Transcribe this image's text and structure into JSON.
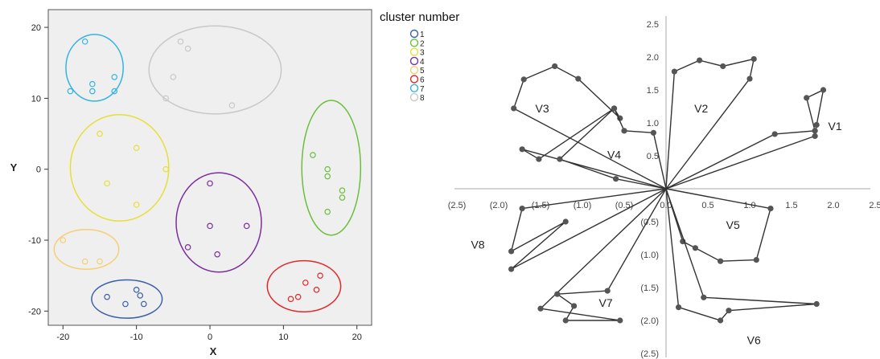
{
  "chart_data": [
    {
      "type": "scatter",
      "title": "",
      "xlabel": "X",
      "ylabel": "Y",
      "xlim": [
        -22,
        22
      ],
      "ylim": [
        -22,
        22.5
      ],
      "xticks": [
        "-20",
        "-10",
        "0",
        "10",
        "20"
      ],
      "yticks": [
        "20",
        "10",
        "0",
        "-10",
        "-20"
      ],
      "grid": false,
      "legend": {
        "title": "cluster number",
        "position": "top-right",
        "labels": [
          "1",
          "2",
          "3",
          "4",
          "5",
          "6",
          "7",
          "8"
        ]
      },
      "series": [
        {
          "name": "1",
          "color": "#3a5fa8",
          "points": [
            [
              -14,
              -18
            ],
            [
              -10,
              -17
            ],
            [
              -9.5,
              -17.8
            ],
            [
              -11.5,
              -19
            ],
            [
              -9,
              -19
            ]
          ],
          "ellipse": {
            "cx": -11.3,
            "cy": -18.3,
            "rx": 4.8,
            "ry": 2.7
          }
        },
        {
          "name": "2",
          "color": "#6abf3c",
          "points": [
            [
              14,
              2
            ],
            [
              16,
              0
            ],
            [
              16,
              -1
            ],
            [
              18,
              -3
            ],
            [
              18,
              -4
            ],
            [
              16,
              -6
            ]
          ],
          "ellipse": {
            "cx": 16.5,
            "cy": 0.2,
            "rx": 4,
            "ry": 9.5
          }
        },
        {
          "name": "3",
          "color": "#e6df3a",
          "points": [
            [
              -15,
              5
            ],
            [
              -10,
              3
            ],
            [
              -6,
              0
            ],
            [
              -14,
              -2
            ],
            [
              -10,
              -5
            ]
          ],
          "ellipse": {
            "cx": -12.3,
            "cy": 0.2,
            "rx": 6.7,
            "ry": 7.5
          }
        },
        {
          "name": "4",
          "color": "#7b2f9e",
          "points": [
            [
              0,
              -2
            ],
            [
              0,
              -8
            ],
            [
              5,
              -8
            ],
            [
              -3,
              -11
            ],
            [
              1,
              -12
            ]
          ],
          "ellipse": {
            "cx": 1.2,
            "cy": -7.5,
            "rx": 5.8,
            "ry": 7
          }
        },
        {
          "name": "5",
          "color": "#f5cf75",
          "points": [
            [
              -20,
              -10
            ],
            [
              -17,
              -13
            ],
            [
              -15,
              -13
            ]
          ],
          "ellipse": {
            "cx": -16.8,
            "cy": -11.3,
            "rx": 4.4,
            "ry": 2.8
          }
        },
        {
          "name": "6",
          "color": "#e02a2a",
          "points": [
            [
              15,
              -15
            ],
            [
              13,
              -16
            ],
            [
              14.5,
              -17
            ],
            [
              12,
              -18
            ],
            [
              11,
              -18.3
            ]
          ],
          "ellipse": {
            "cx": 12.8,
            "cy": -16.5,
            "rx": 5,
            "ry": 3.6
          }
        },
        {
          "name": "7",
          "color": "#33b4e0",
          "points": [
            [
              -17,
              18
            ],
            [
              -13,
              13
            ],
            [
              -16,
              12
            ],
            [
              -16,
              11
            ],
            [
              -13,
              11
            ],
            [
              -19,
              11
            ]
          ],
          "ellipse": {
            "cx": -15.7,
            "cy": 14.3,
            "rx": 3.9,
            "ry": 4.7
          }
        },
        {
          "name": "8",
          "color": "#c8c8c8",
          "points": [
            [
              -4,
              18
            ],
            [
              -3,
              17
            ],
            [
              -5,
              13
            ],
            [
              -6,
              10
            ],
            [
              3,
              9
            ]
          ],
          "ellipse": {
            "cx": 0.7,
            "cy": 14,
            "rx": 9,
            "ry": 6.2
          }
        }
      ]
    },
    {
      "type": "line",
      "title": "",
      "xlim": [
        -2.5,
        2.5
      ],
      "ylim": [
        -2.5,
        2.5
      ],
      "xticks": [
        "(2.5)",
        "(2.0)",
        "(1.5)",
        "(1.0)",
        "(0.5)",
        "0.0",
        "0.5",
        "1.0",
        "1.5",
        "2.0",
        "2.5"
      ],
      "yticks": [
        "2.5",
        "2.0",
        "1.5",
        "1.0",
        "0.5",
        "0.0",
        "(0.5)",
        "(1.0)",
        "(1.5)",
        "(2.0)",
        "(2.5)"
      ],
      "axis_color": "#aaaaaa",
      "line_color": "#333333",
      "marker_color": "#555555",
      "series": [
        {
          "name": "V1",
          "label_at": [
            2.02,
            0.95
          ],
          "points": [
            [
              1.78,
              0.8
            ],
            [
              1.8,
              0.97
            ],
            [
              1.88,
              1.5
            ],
            [
              1.68,
              1.38
            ],
            [
              1.78,
              0.88
            ],
            [
              1.3,
              0.83
            ]
          ]
        },
        {
          "name": "V2",
          "label_at": [
            0.42,
            1.22
          ],
          "points": [
            [
              0.1,
              1.78
            ],
            [
              0.4,
              1.95
            ],
            [
              0.68,
              1.86
            ],
            [
              1.05,
              1.97
            ],
            [
              1.0,
              1.67
            ]
          ]
        },
        {
          "name": "V3",
          "label_at": [
            -1.48,
            1.22
          ],
          "points": [
            [
              -1.82,
              1.22
            ],
            [
              -1.7,
              1.66
            ],
            [
              -1.33,
              1.86
            ],
            [
              -1.05,
              1.67
            ],
            [
              -0.55,
              1.07
            ],
            [
              -0.62,
              1.22
            ],
            [
              -1.52,
              0.45
            ],
            [
              -1.72,
              0.6
            ]
          ]
        },
        {
          "name": "V4",
          "label_at": [
            -0.62,
            0.52
          ],
          "points": [
            [
              -0.15,
              0.85
            ],
            [
              -0.5,
              0.88
            ],
            [
              -0.62,
              1.22
            ],
            [
              -1.27,
              0.45
            ],
            [
              -0.6,
              0.15
            ]
          ]
        },
        {
          "name": "V5",
          "label_at": [
            0.8,
            -0.55
          ],
          "points": [
            [
              1.25,
              -0.3
            ],
            [
              1.08,
              -1.08
            ],
            [
              0.65,
              -1.1
            ],
            [
              0.35,
              -0.9
            ],
            [
              0.2,
              -0.8
            ]
          ]
        },
        {
          "name": "V6",
          "label_at": [
            1.05,
            -2.3
          ],
          "points": [
            [
              0.45,
              -1.65
            ],
            [
              1.8,
              -1.75
            ],
            [
              0.75,
              -1.85
            ],
            [
              0.65,
              -2.0
            ],
            [
              0.15,
              -1.8
            ]
          ]
        },
        {
          "name": "V7",
          "label_at": [
            -0.72,
            -1.73
          ],
          "points": [
            [
              -0.7,
              -1.55
            ],
            [
              -1.3,
              -1.6
            ],
            [
              -1.1,
              -1.78
            ],
            [
              -1.2,
              -2.0
            ],
            [
              -0.55,
              -2.0
            ],
            [
              -1.5,
              -1.82
            ]
          ]
        },
        {
          "name": "V8",
          "label_at": [
            -2.25,
            -0.85
          ],
          "points": [
            [
              -1.72,
              -0.3
            ],
            [
              -1.85,
              -0.95
            ],
            [
              -1.2,
              -0.5
            ],
            [
              -1.85,
              -1.22
            ]
          ]
        }
      ]
    }
  ]
}
